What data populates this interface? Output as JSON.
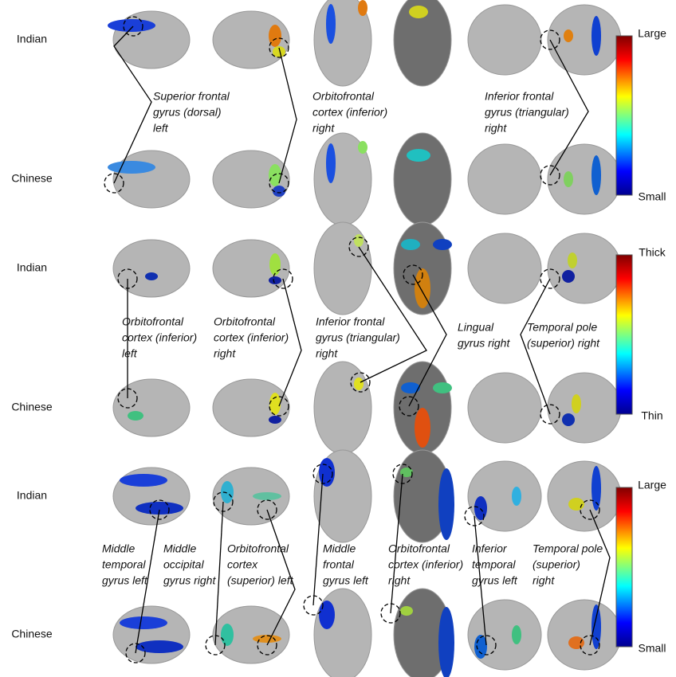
{
  "panels": [
    {
      "rows": [
        "Indian",
        "Chinese"
      ],
      "annotations": [
        {
          "lines": [
            "Superior frontal",
            "gyrus (dorsal)",
            "left"
          ]
        },
        {
          "lines": [
            "Orbitofrontal",
            "cortex (inferior)",
            "right"
          ]
        },
        {
          "lines": [
            "Inferior frontal",
            "gyrus (triangular)",
            "right"
          ]
        }
      ],
      "colorbar": {
        "top": "Large",
        "bottom": "Small"
      }
    },
    {
      "rows": [
        "Indian",
        "Chinese"
      ],
      "annotations": [
        {
          "lines": [
            "Orbitofrontal",
            "cortex (inferior)",
            "left"
          ]
        },
        {
          "lines": [
            "Orbitofrontal",
            "cortex (inferior)",
            "right"
          ]
        },
        {
          "lines": [
            "Inferior frontal",
            "gyrus (triangular)",
            "right"
          ]
        },
        {
          "lines": [
            "Lingual",
            "gyrus right"
          ]
        },
        {
          "lines": [
            "Temporal pole",
            "(superior) right"
          ]
        }
      ],
      "colorbar": {
        "top": "Thick",
        "bottom": "Thin"
      }
    },
    {
      "rows": [
        "Indian",
        "Chinese"
      ],
      "annotations": [
        {
          "lines": [
            "Middle",
            "temporal",
            "gyrus left"
          ]
        },
        {
          "lines": [
            "Middle",
            "occipital",
            "gyrus right"
          ]
        },
        {
          "lines": [
            "Orbitofrontal",
            "cortex",
            "(superior) left"
          ]
        },
        {
          "lines": [
            "Middle",
            "frontal",
            "gyrus left"
          ]
        },
        {
          "lines": [
            "Orbitofrontal",
            "cortex (inferior)",
            "right"
          ]
        },
        {
          "lines": [
            "Inferior",
            "temporal",
            "gyrus left"
          ]
        },
        {
          "lines": [
            "Temporal pole",
            "(superior)",
            "right"
          ]
        }
      ],
      "colorbar": {
        "top": "Large",
        "bottom": "Small"
      }
    }
  ]
}
